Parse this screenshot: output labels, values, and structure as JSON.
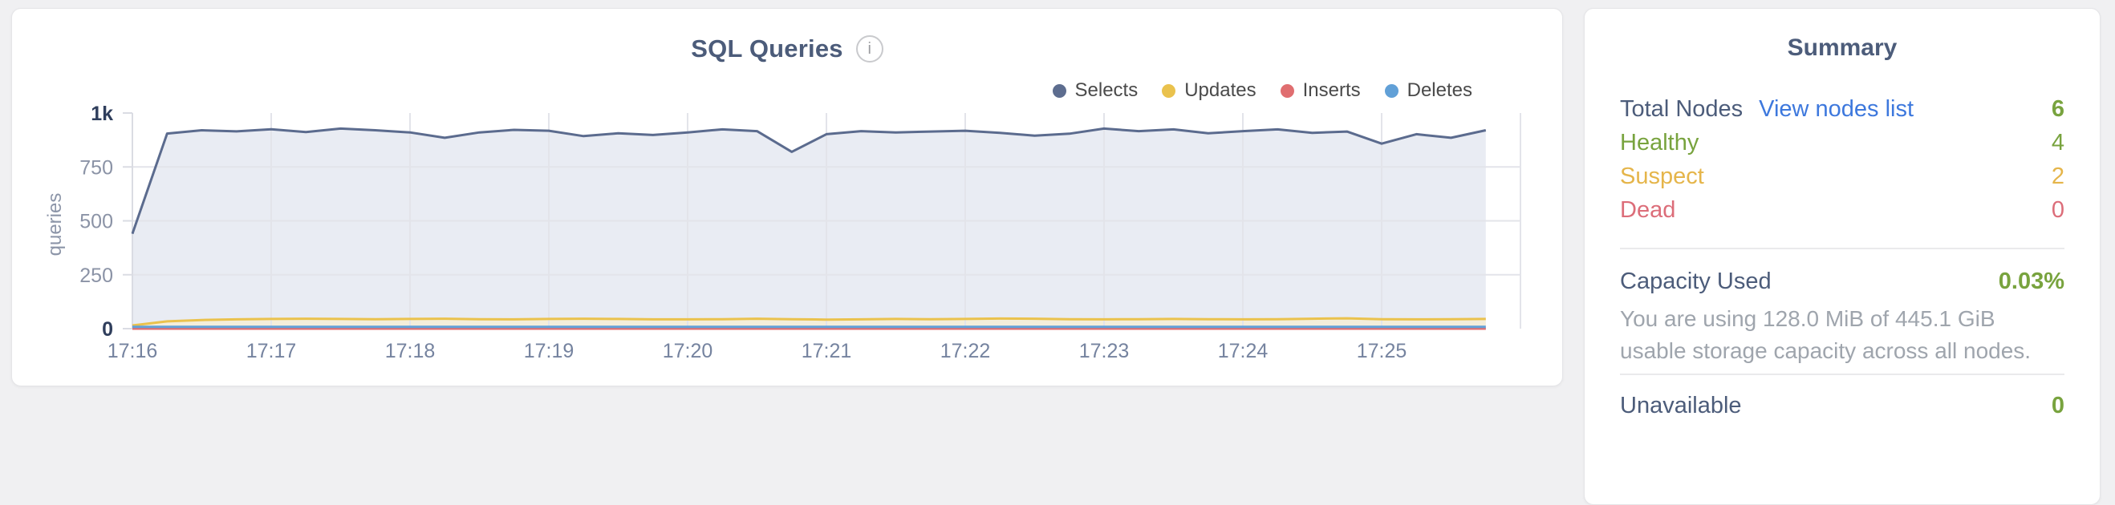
{
  "chart_panel": {
    "title": "SQL Queries",
    "info_icon_glyph": "i",
    "legend": [
      {
        "label": "Selects",
        "color": "#5d6d8f"
      },
      {
        "label": "Updates",
        "color": "#eac24d"
      },
      {
        "label": "Inserts",
        "color": "#e06e70"
      },
      {
        "label": "Deletes",
        "color": "#61a0d7"
      }
    ]
  },
  "chart_data": {
    "type": "area",
    "title": "SQL Queries",
    "xlabel": "",
    "ylabel": "queries",
    "ylim": [
      0,
      1000
    ],
    "yticks": [
      0,
      250,
      500,
      750,
      1000
    ],
    "ytick_labels": [
      "0",
      "250",
      "500",
      "750",
      "1k"
    ],
    "x_tick_labels": [
      "17:16",
      "17:17",
      "17:18",
      "17:19",
      "17:20",
      "17:21",
      "17:22",
      "17:23",
      "17:24",
      "17:25"
    ],
    "x_range_minutes": [
      0,
      9.75
    ],
    "grid": true,
    "legend_position": "top-right",
    "series": [
      {
        "name": "Selects",
        "color": "#5b6b8e",
        "fill": "#e9ecf3",
        "values": [
          440,
          905,
          920,
          915,
          925,
          912,
          928,
          920,
          910,
          885,
          910,
          922,
          918,
          893,
          906,
          898,
          910,
          924,
          916,
          820,
          902,
          916,
          910,
          914,
          918,
          908,
          895,
          904,
          928,
          916,
          924,
          906,
          916,
          924,
          908,
          914,
          858,
          902,
          885,
          920
        ]
      },
      {
        "name": "Updates",
        "color": "#eac24d",
        "fill": "#f4eeda",
        "values": [
          15,
          34,
          40,
          43,
          45,
          46,
          45,
          44,
          45,
          46,
          44,
          43,
          45,
          46,
          45,
          43,
          43,
          44,
          46,
          44,
          42,
          43,
          45,
          44,
          45,
          47,
          46,
          44,
          43,
          44,
          45,
          44,
          43,
          44,
          46,
          48,
          44,
          43,
          44,
          45
        ]
      },
      {
        "name": "Inserts",
        "color": "#e06e70",
        "fill": "none",
        "values": [
          0,
          0
        ]
      },
      {
        "name": "Deletes",
        "color": "#61a0d7",
        "fill": "none",
        "values": [
          8,
          8
        ]
      }
    ]
  },
  "summary_panel": {
    "title": "Summary",
    "rows": [
      {
        "label": "Total Nodes",
        "label_color": "#4c5c7a",
        "link": "View nodes list",
        "value": "6",
        "value_color": "#78a33e",
        "value_bold": true
      },
      {
        "label": "Healthy",
        "label_color": "#78a33e",
        "value": "4",
        "value_color": "#78a33e",
        "value_bold": false
      },
      {
        "label": "Suspect",
        "label_color": "#e5b54a",
        "value": "2",
        "value_color": "#e5b54a",
        "value_bold": false
      },
      {
        "label": "Dead",
        "label_color": "#dc6d79",
        "value": "0",
        "value_color": "#dc6d79",
        "value_bold": false
      }
    ],
    "capacity": {
      "label": "Capacity Used",
      "value": "0.03%",
      "value_color": "#78a33e",
      "description": "You are using 128.0 MiB of 445.1 GiB usable storage capacity across all nodes."
    },
    "partial_row": {
      "label": "Unavailable",
      "value": "0",
      "value_color": "#78a33e"
    }
  },
  "colors": {
    "axis_tick_bold": "#2f3e5c",
    "axis_tick_mid": "#8b93a6",
    "axis_tick_x": "#75839f",
    "gridline": "#e3e4ea",
    "axis_line": "#aab1c0",
    "axis_y_line": "#dadce3"
  }
}
